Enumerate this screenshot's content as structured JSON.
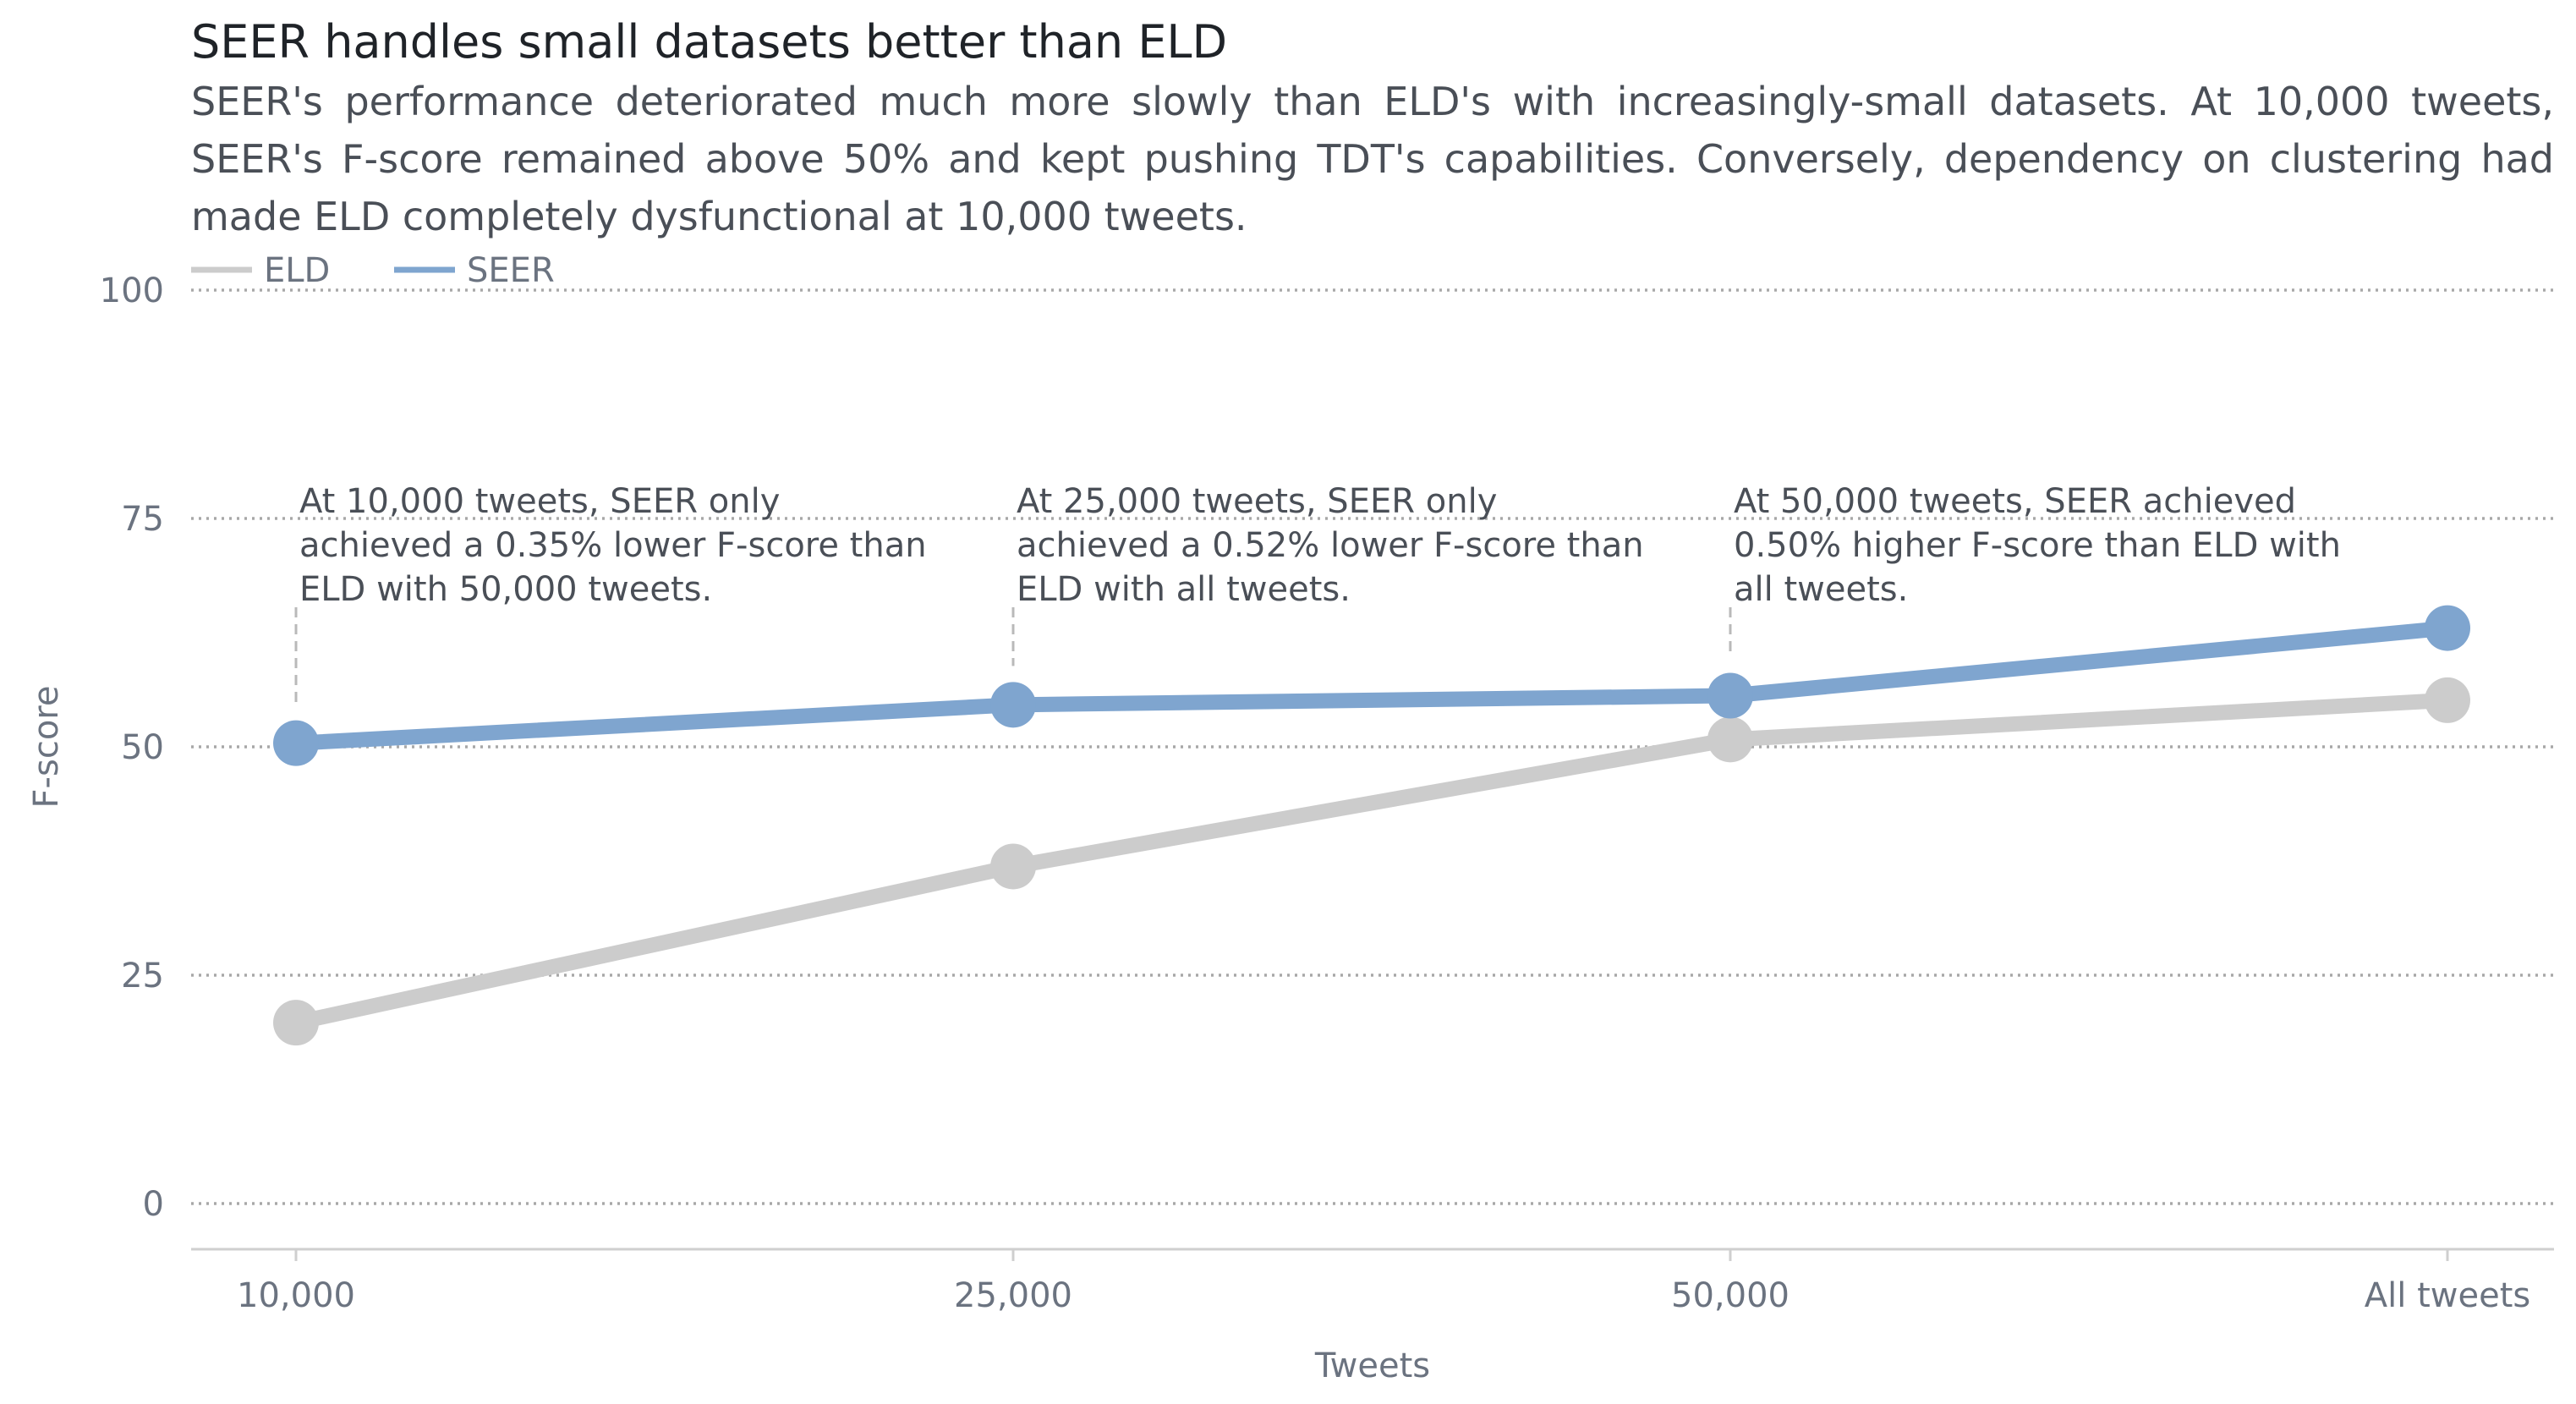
{
  "chart_data": {
    "type": "line",
    "title": "SEER handles small datasets better than ELD",
    "subtitle": "SEER's performance deteriorated much more slowly than ELD's with increasingly-small datasets. At 10,000 tweets, SEER's F-score remained above 50% and kept pushing TDT's capabilities. Conversely, dependency on clustering had made ELD completely dysfunctional at 10,000 tweets.",
    "xlabel": "Tweets",
    "ylabel": "F-score",
    "categories": [
      "10,000",
      "25,000",
      "50,000",
      "All tweets"
    ],
    "ylim": [
      -5,
      100
    ],
    "yticks": [
      0,
      25,
      50,
      75,
      100
    ],
    "grid": true,
    "legend_position": "top-left",
    "series": [
      {
        "name": "ELD",
        "values": [
          19.8,
          36.9,
          50.8,
          55.1
        ],
        "color": "#cccccc"
      },
      {
        "name": "SEER",
        "values": [
          50.4,
          54.6,
          55.6,
          63.0
        ],
        "color": "#7fa5cf"
      }
    ],
    "annotations": [
      {
        "x_index": 0,
        "text_lines": [
          "At 10,000 tweets, SEER only",
          "achieved a 0.35% lower F-score than",
          "ELD with 50,000 tweets."
        ]
      },
      {
        "x_index": 1,
        "text_lines": [
          "At 25,000 tweets, SEER only",
          "achieved a 0.52% lower F-score than",
          "ELD with all tweets."
        ]
      },
      {
        "x_index": 2,
        "text_lines": [
          "At 50,000 tweets, SEER achieved",
          "0.50% higher F-score than ELD with",
          "all tweets."
        ]
      }
    ]
  }
}
